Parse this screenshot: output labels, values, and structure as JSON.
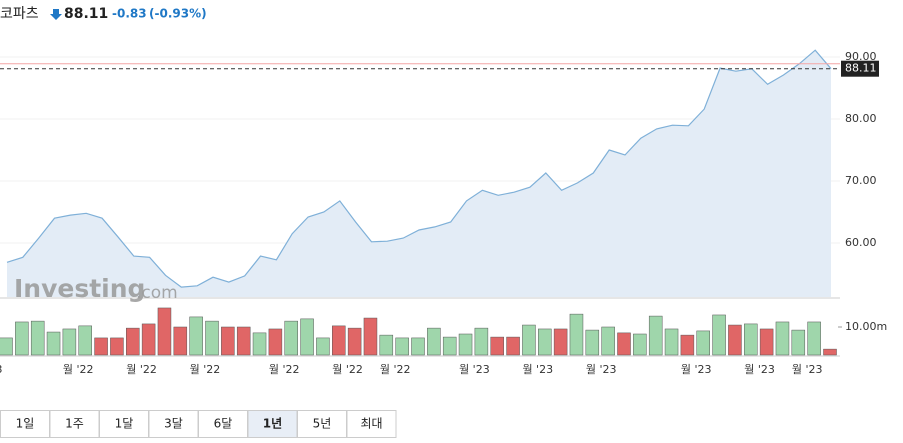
{
  "header": {
    "name": "코파츠",
    "price": "88.11",
    "change": "-0.83",
    "change_pct": "(-0.93%)"
  },
  "chart_data": {
    "type": "line",
    "color": "#7fb0d8",
    "fill": "#e3ecf6",
    "watermark": [
      "Investing",
      ".com"
    ],
    "categories": [
      "3",
      null,
      null,
      null,
      null,
      "월 '22",
      null,
      null,
      null,
      "월 '22",
      null,
      null,
      null,
      "월 '22",
      null,
      null,
      null,
      null,
      "월 '22",
      null,
      null,
      null,
      "월 '22",
      null,
      null,
      "월 '22",
      null,
      null,
      null,
      null,
      "월 '23",
      null,
      null,
      null,
      "월 '23",
      null,
      null,
      null,
      "월 '23",
      null,
      null,
      null,
      null,
      null,
      "월 '23",
      null,
      null,
      null,
      "월 '23",
      null,
      null,
      "월 '23",
      null
    ],
    "values": [
      56.9,
      57.7,
      60.8,
      64.0,
      64.5,
      64.8,
      64.0,
      61.0,
      57.9,
      57.7,
      54.8,
      52.9,
      53.1,
      54.5,
      53.7,
      54.7,
      57.9,
      57.3,
      61.5,
      64.2,
      65.0,
      66.8,
      63.4,
      60.2,
      60.3,
      60.8,
      62.1,
      62.6,
      63.4,
      66.8,
      68.5,
      67.7,
      68.2,
      69.0,
      71.3,
      68.5,
      69.7,
      71.3,
      75.0,
      74.2,
      76.9,
      78.4,
      79.0,
      78.9,
      81.6,
      88.2,
      87.7,
      88.1,
      85.6,
      87.1,
      88.9,
      91.1,
      88.11
    ],
    "ylim": [
      51.3,
      93.06
    ],
    "yticks": [
      {
        "value": 60,
        "label": "60.00"
      },
      {
        "value": 70,
        "label": "70.00"
      },
      {
        "value": 80,
        "label": "80.00"
      },
      {
        "value": 90,
        "label": "90.00"
      }
    ],
    "last_price": {
      "value": 88.11,
      "label": "88.11"
    },
    "reference_line": 88.9,
    "volume": {
      "values": [
        6.1,
        11.8,
        12.1,
        8.2,
        9.3,
        10.4,
        6.1,
        6.1,
        9.6,
        11.1,
        16.8,
        10,
        13.6,
        12.1,
        10,
        10,
        7.9,
        9.3,
        12.1,
        12.9,
        6.1,
        10.4,
        9.6,
        13.2,
        7.1,
        6.1,
        6.1,
        9.6,
        6.4,
        7.5,
        9.6,
        6.4,
        6.4,
        10.7,
        9.3,
        9.3,
        14.6,
        8.9,
        10,
        7.9,
        7.5,
        13.9,
        9.3,
        7.1,
        8.6,
        14.3,
        10.7,
        11.1,
        9.3,
        11.8,
        8.9,
        11.8,
        2.1
      ],
      "colors": [
        "#9fd6ab",
        "#9fd6ab",
        "#9fd6ab",
        "#9fd6ab",
        "#9fd6ab",
        "#9fd6ab",
        "#e06666",
        "#e06666",
        "#e06666",
        "#e06666",
        "#e06666",
        "#e06666",
        "#9fd6ab",
        "#9fd6ab",
        "#e06666",
        "#e06666",
        "#9fd6ab",
        "#e06666",
        "#9fd6ab",
        "#9fd6ab",
        "#9fd6ab",
        "#e06666",
        "#e06666",
        "#e06666",
        "#9fd6ab",
        "#9fd6ab",
        "#9fd6ab",
        "#9fd6ab",
        "#9fd6ab",
        "#9fd6ab",
        "#9fd6ab",
        "#e06666",
        "#e06666",
        "#9fd6ab",
        "#9fd6ab",
        "#e06666",
        "#9fd6ab",
        "#9fd6ab",
        "#9fd6ab",
        "#e06666",
        "#9fd6ab",
        "#9fd6ab",
        "#9fd6ab",
        "#e06666",
        "#9fd6ab",
        "#9fd6ab",
        "#e06666",
        "#9fd6ab",
        "#e06666",
        "#9fd6ab",
        "#9fd6ab",
        "#9fd6ab",
        "#e06666"
      ],
      "ylim": [
        0,
        20
      ],
      "yticks": [
        {
          "value": 10,
          "label": "10.00m"
        }
      ]
    }
  },
  "ranges": [
    "1일",
    "1주",
    "1달",
    "3달",
    "6달",
    "1년",
    "5년",
    "최대"
  ],
  "active_range": 5
}
